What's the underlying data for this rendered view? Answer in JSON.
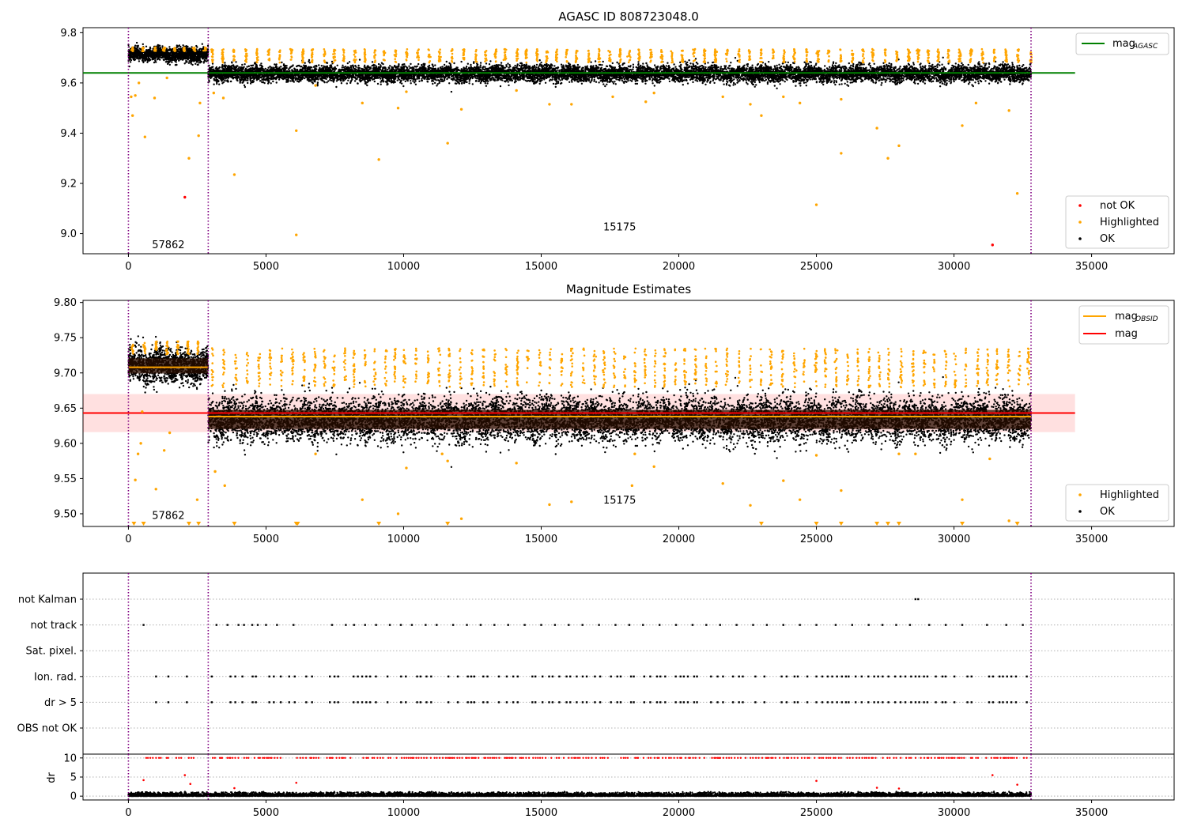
{
  "chart_data": [
    {
      "type": "scatter",
      "title": "AGASC ID 808723048.0",
      "xlim": [
        -1650,
        38000
      ],
      "ylim": [
        8.92,
        9.82
      ],
      "xticks": [
        0,
        5000,
        10000,
        15000,
        20000,
        25000,
        30000,
        35000
      ],
      "xtick_labels": [
        "0",
        "5000",
        "10000",
        "15000",
        "20000",
        "25000",
        "30000",
        "35000"
      ],
      "yticks": [
        9.0,
        9.2,
        9.4,
        9.6,
        9.8
      ],
      "ytick_labels": [
        "9.0",
        "9.2",
        "9.4",
        "9.6",
        "9.8"
      ],
      "obsid_boundaries": [
        0,
        2900,
        32800
      ],
      "obsid_labels": [
        {
          "text": "57862",
          "x": 1450,
          "y": 8.955
        },
        {
          "text": "15175",
          "x": 17850,
          "y": 9.025
        }
      ],
      "reference_line": {
        "name": "mag",
        "subscript": "AGASC",
        "value": 9.64,
        "xmax": 34400,
        "color": "#008000"
      },
      "segments": [
        {
          "x_start": 0,
          "x_end": 2900,
          "ok_mean": 9.713,
          "ok_spread": 0.014,
          "highlight_upper": 9.742
        },
        {
          "x_start": 2900,
          "x_end": 32800,
          "ok_mean": 9.637,
          "ok_spread": 0.016,
          "highlight_upper": 9.735
        }
      ],
      "outliers": {
        "highlighted": [
          [
            100,
            9.545
          ],
          [
            250,
            9.55
          ],
          [
            150,
            9.47
          ],
          [
            380,
            9.6
          ],
          [
            600,
            9.385
          ],
          [
            950,
            9.54
          ],
          [
            1400,
            9.62
          ],
          [
            2200,
            9.3
          ],
          [
            2550,
            9.39
          ],
          [
            2600,
            9.52
          ],
          [
            3100,
            9.56
          ],
          [
            3450,
            9.54
          ],
          [
            3850,
            9.235
          ],
          [
            6100,
            9.41
          ],
          [
            6100,
            8.995
          ],
          [
            6800,
            9.59
          ],
          [
            8500,
            9.52
          ],
          [
            9100,
            9.295
          ],
          [
            9800,
            9.5
          ],
          [
            10100,
            9.565
          ],
          [
            11600,
            9.36
          ],
          [
            12100,
            9.495
          ],
          [
            14100,
            9.57
          ],
          [
            15300,
            9.515
          ],
          [
            16100,
            9.515
          ],
          [
            17600,
            9.545
          ],
          [
            18800,
            9.525
          ],
          [
            19100,
            9.56
          ],
          [
            21600,
            9.545
          ],
          [
            22600,
            9.515
          ],
          [
            23000,
            9.47
          ],
          [
            23800,
            9.545
          ],
          [
            24400,
            9.52
          ],
          [
            25000,
            9.115
          ],
          [
            25900,
            9.32
          ],
          [
            25900,
            9.535
          ],
          [
            27200,
            9.42
          ],
          [
            27600,
            9.3
          ],
          [
            28000,
            9.35
          ],
          [
            30300,
            9.43
          ],
          [
            30800,
            9.52
          ],
          [
            32000,
            9.49
          ],
          [
            32300,
            9.16
          ]
        ],
        "not_ok": [
          [
            2050,
            9.145
          ],
          [
            31400,
            8.955
          ]
        ]
      },
      "legend": {
        "position": "upper right",
        "entries": [
          "mag_AGASC"
        ]
      },
      "legend2": {
        "position": "lower right",
        "entries": [
          {
            "label": "not OK",
            "color": "#ff0000"
          },
          {
            "label": "Highlighted",
            "color": "#ffa500"
          },
          {
            "label": "OK",
            "color": "#000000"
          }
        ]
      }
    },
    {
      "type": "scatter",
      "title": "Magnitude Estimates",
      "xlim": [
        -1650,
        38000
      ],
      "ylim": [
        9.482,
        9.803
      ],
      "xticks": [
        0,
        5000,
        10000,
        15000,
        20000,
        25000,
        30000,
        35000
      ],
      "xtick_labels": [
        "0",
        "5000",
        "10000",
        "15000",
        "20000",
        "25000",
        "30000",
        "35000"
      ],
      "yticks": [
        9.5,
        9.55,
        9.6,
        9.65,
        9.7,
        9.75,
        9.8
      ],
      "ytick_labels": [
        "9.50",
        "9.55",
        "9.60",
        "9.65",
        "9.70",
        "9.75",
        "9.80"
      ],
      "obsid_boundaries": [
        0,
        2900,
        32800
      ],
      "obsid_labels": [
        {
          "text": "57862",
          "x": 1450,
          "y": 9.497
        },
        {
          "text": "15175",
          "x": 17850,
          "y": 9.519
        }
      ],
      "mag_line": {
        "name": "mag",
        "value": 9.643,
        "band": [
          9.616,
          9.67
        ],
        "xmax": 34400,
        "color": "#ff0000"
      },
      "mag_obsid": [
        {
          "x_start": 0,
          "x_end": 2900,
          "value": 9.708
        },
        {
          "x_start": 2900,
          "x_end": 32800,
          "value": 9.638
        }
      ],
      "segments": [
        {
          "x_start": 0,
          "x_end": 2900,
          "ok_mean": 9.71,
          "ok_spread": 0.012,
          "highlight_upper": 9.745
        },
        {
          "x_start": 2900,
          "x_end": 32800,
          "ok_mean": 9.634,
          "ok_spread": 0.015,
          "highlight_upper": 9.735
        }
      ],
      "outliers": {
        "highlighted": [
          [
            250,
            9.548
          ],
          [
            350,
            9.585
          ],
          [
            500,
            9.645
          ],
          [
            450,
            9.6
          ],
          [
            1000,
            9.535
          ],
          [
            1300,
            9.59
          ],
          [
            1500,
            9.615
          ],
          [
            2500,
            9.52
          ],
          [
            3150,
            9.56
          ],
          [
            3500,
            9.54
          ],
          [
            6800,
            9.585
          ],
          [
            8500,
            9.52
          ],
          [
            9800,
            9.5
          ],
          [
            10100,
            9.565
          ],
          [
            11400,
            9.585
          ],
          [
            11600,
            9.575
          ],
          [
            12100,
            9.493
          ],
          [
            14100,
            9.572
          ],
          [
            15300,
            9.513
          ],
          [
            16100,
            9.517
          ],
          [
            18300,
            9.54
          ],
          [
            18400,
            9.585
          ],
          [
            19100,
            9.567
          ],
          [
            21600,
            9.543
          ],
          [
            22600,
            9.512
          ],
          [
            23800,
            9.547
          ],
          [
            24400,
            9.52
          ],
          [
            25000,
            9.583
          ],
          [
            25900,
            9.533
          ],
          [
            28000,
            9.585
          ],
          [
            28600,
            9.585
          ],
          [
            30300,
            9.52
          ],
          [
            31300,
            9.578
          ],
          [
            32000,
            9.49
          ],
          [
            32300,
            9.487
          ]
        ],
        "clipped_low_x": [
          200,
          550,
          2200,
          2550,
          3850,
          6100,
          6150,
          9100,
          11600,
          23000,
          25000,
          25900,
          27200,
          27600,
          28000,
          30300,
          32300
        ]
      },
      "legend": {
        "position": "upper right",
        "entries": [
          "mag_OBSID",
          "mag"
        ]
      },
      "legend2": {
        "position": "lower right",
        "entries": [
          {
            "label": "Highlighted",
            "color": "#ffa500"
          },
          {
            "label": "OK",
            "color": "#000000"
          }
        ]
      }
    },
    {
      "type": "scatter",
      "title": "",
      "xlim": [
        -1650,
        38000
      ],
      "flag_rows": [
        "not Kalman",
        "not track",
        "Sat. pixel.",
        "Ion. rad.",
        "dr > 5",
        "OBS not OK"
      ],
      "obsid_boundaries": [
        0,
        2900,
        32800
      ],
      "flag_events": {
        "not Kalman": [
          28600,
          28700
        ],
        "not track": [
          550,
          3200,
          3600,
          4000,
          4200,
          4500,
          4700,
          5000,
          5400,
          6000,
          7400,
          7900,
          8200,
          8600,
          9000,
          9500,
          9900,
          10300,
          10800,
          11200,
          11800,
          12300,
          12800,
          13300,
          13800,
          14400,
          15000,
          15500,
          16000,
          16500,
          17100,
          17700,
          18200,
          18700,
          19300,
          19900,
          20500,
          21000,
          21500,
          22100,
          22700,
          23200,
          23800,
          24400,
          25000,
          25700,
          26300,
          26900,
          27400,
          27900,
          28400,
          29100,
          29700,
          30300,
          31200,
          31900,
          32500
        ]
      }
    },
    {
      "type": "scatter",
      "title": "",
      "ylabel": "dr",
      "xlim": [
        -1650,
        38000
      ],
      "ylim": [
        -1,
        11
      ],
      "yticks": [
        0,
        5,
        10
      ],
      "ytick_labels": [
        "0",
        "5",
        "10"
      ],
      "xticks": [
        0,
        5000,
        10000,
        15000,
        20000,
        25000,
        30000,
        35000
      ],
      "xtick_labels": [
        "0",
        "5000",
        "10000",
        "15000",
        "20000",
        "25000",
        "30000",
        "35000"
      ],
      "obsid_boundaries": [
        0,
        2900,
        32800
      ],
      "ok_band": [
        0,
        1.2
      ],
      "clipped_value": 10,
      "outliers": [
        [
          550,
          4.2
        ],
        [
          2050,
          5.5
        ],
        [
          2250,
          3.2
        ],
        [
          6100,
          3.5
        ],
        [
          3850,
          2.1
        ],
        [
          25000,
          4.0
        ],
        [
          27200,
          2.2
        ],
        [
          28000,
          2.0
        ],
        [
          31400,
          5.5
        ],
        [
          32300,
          3.0
        ]
      ]
    }
  ]
}
